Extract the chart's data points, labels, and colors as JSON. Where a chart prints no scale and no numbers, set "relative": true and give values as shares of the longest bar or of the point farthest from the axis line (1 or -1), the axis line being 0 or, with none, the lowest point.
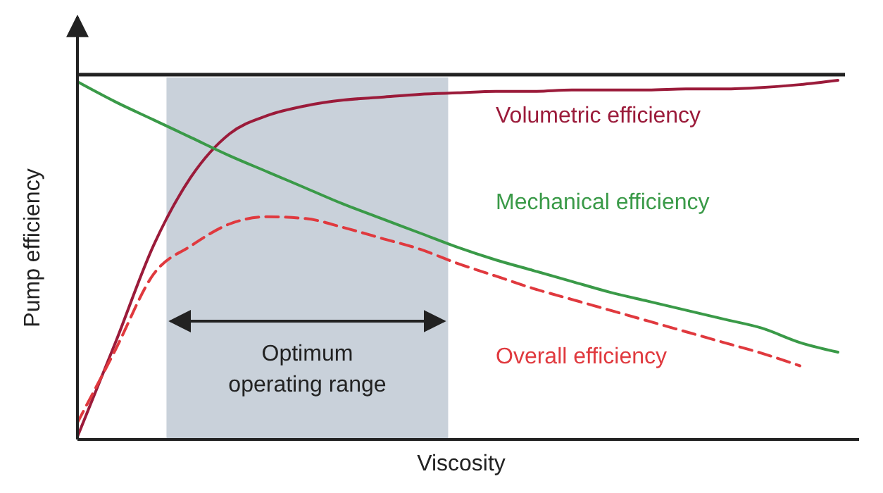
{
  "chart_data": {
    "type": "line",
    "relative": true,
    "xlabel": "Viscosity",
    "ylabel": "Pump efficiency",
    "categories": [
      null,
      null,
      null,
      null,
      null,
      null,
      null,
      null,
      null,
      null,
      null,
      null,
      null,
      null,
      null,
      null,
      null,
      null,
      null,
      null,
      null
    ],
    "series": [
      {
        "name": "Volumetric efficiency",
        "color": "#9b1b3a",
        "line_style": "solid",
        "values": [
          0.008,
          0.27,
          0.54,
          0.733,
          0.851,
          0.902,
          0.929,
          0.945,
          0.953,
          0.961,
          0.965,
          0.969,
          0.969,
          0.973,
          0.973,
          0.973,
          0.976,
          0.976,
          0.98,
          0.988,
          1
        ]
      },
      {
        "name": "Mechanical efficiency",
        "color": "#3a9a48",
        "line_style": "solid",
        "values": [
          0.996,
          0.94,
          0.89,
          0.84,
          0.79,
          0.745,
          0.7,
          0.655,
          0.615,
          0.575,
          0.535,
          0.5,
          0.47,
          0.44,
          0.41,
          0.385,
          0.36,
          0.335,
          0.31,
          0.27,
          0.243
        ]
      },
      {
        "name": "Overall efficiency",
        "color": "#e0393e",
        "line_style": "dashed",
        "values": [
          0.047,
          0.25,
          0.46,
          0.54,
          0.6,
          0.62,
          0.615,
          0.59,
          0.56,
          0.53,
          0.49,
          0.455,
          0.42,
          0.39,
          0.36,
          0.33,
          0.3,
          0.27,
          0.24,
          0.205,
          null
        ]
      }
    ],
    "annotations": [
      "Optimum\noperating range"
    ]
  }
}
